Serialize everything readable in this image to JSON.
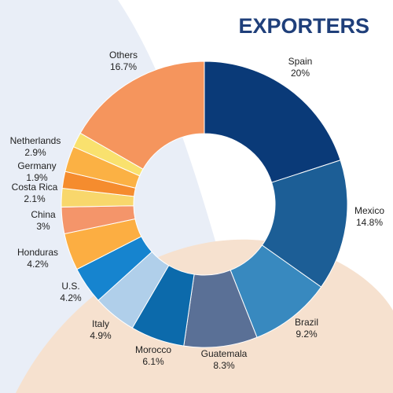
{
  "chart_data": {
    "type": "donut",
    "title": "EXPORTERS",
    "slices": [
      {
        "name": "Spain",
        "value_label": "20%",
        "value": 20,
        "color": "#0a3a78"
      },
      {
        "name": "Mexico",
        "value_label": "14.8%",
        "value": 14.8,
        "color": "#1c5e96"
      },
      {
        "name": "Brazil",
        "value_label": "9.2%",
        "value": 9.2,
        "color": "#3889bf"
      },
      {
        "name": "Guatemala",
        "value_label": "8.3%",
        "value": 8.3,
        "color": "#5a7096"
      },
      {
        "name": "Morocco",
        "value_label": "6.1%",
        "value": 6.1,
        "color": "#0c6aab"
      },
      {
        "name": "Italy",
        "value_label": "4.9%",
        "value": 4.9,
        "color": "#b0cfea"
      },
      {
        "name": "U.S.",
        "value_label": "4.2%",
        "value": 4.2,
        "color": "#1684cf"
      },
      {
        "name": "Honduras",
        "value_label": "4.2%",
        "value": 4.2,
        "color": "#fcae42"
      },
      {
        "name": "China",
        "value_label": "3%",
        "value": 3,
        "color": "#f4956a"
      },
      {
        "name": "Costa Rica",
        "value_label": "2.1%",
        "value": 2.1,
        "color": "#f8d76c"
      },
      {
        "name": "Germany",
        "value_label": "1.9%",
        "value": 1.9,
        "color": "#f58c2e"
      },
      {
        "name": "Netherlands",
        "value_label": "2.9%",
        "value": 2.9,
        "color": "#fbb144"
      },
      {
        "name": "",
        "value_label": "",
        "value": 1.7,
        "color": "#f9e16e"
      },
      {
        "name": "Others",
        "value_label": "16.7%",
        "value": 16.7,
        "color": "#f5955d"
      }
    ]
  }
}
